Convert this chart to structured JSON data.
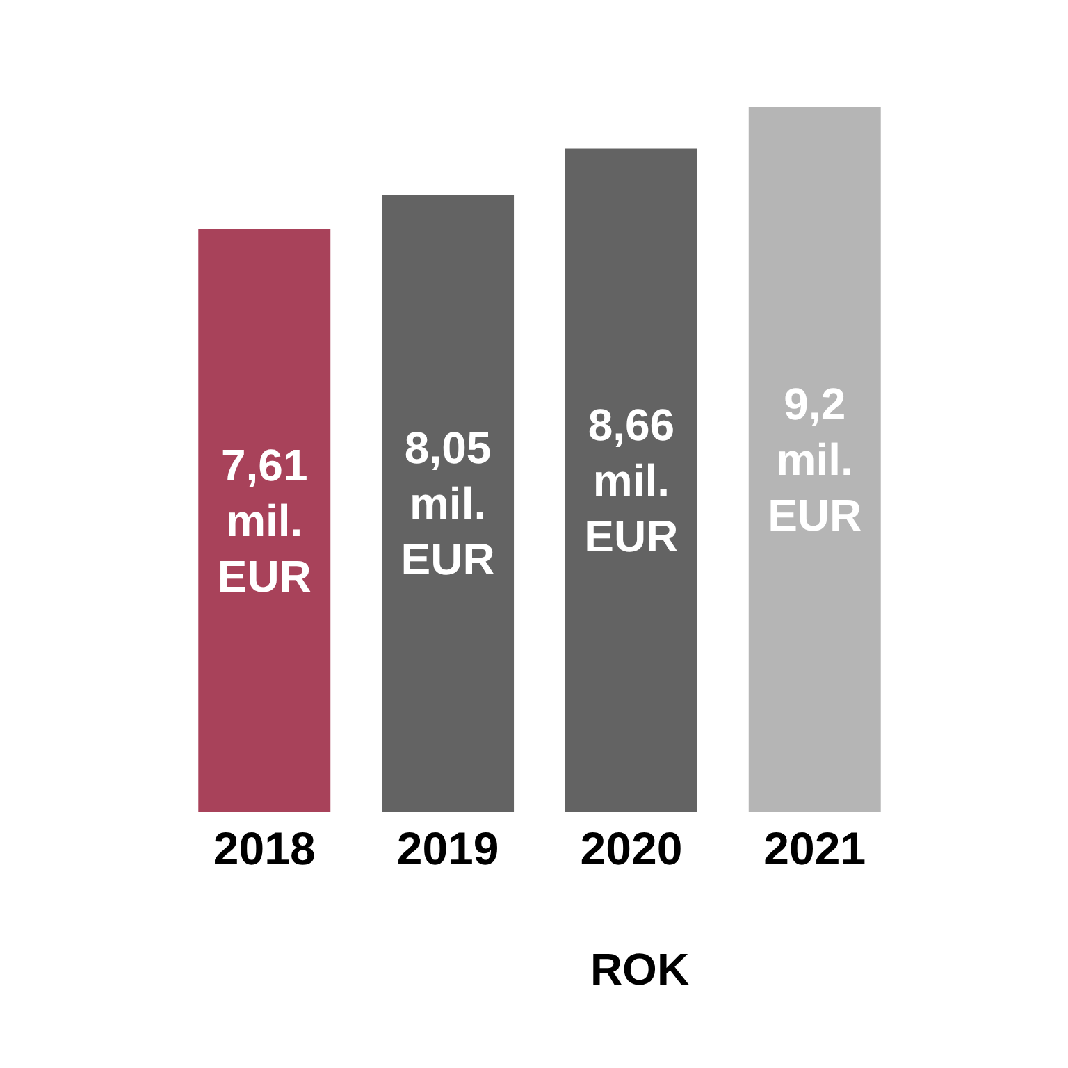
{
  "chart_data": {
    "type": "bar",
    "xlabel": "ROK",
    "categories": [
      "2018",
      "2019",
      "2020",
      "2021"
    ],
    "values": [
      7.61,
      8.05,
      8.66,
      9.2
    ],
    "colors": [
      "#a8425a",
      "#636363",
      "#636363",
      "#b5b5b5"
    ],
    "value_labels": [
      "7,61 mil. EUR",
      "8,05 mil. EUR",
      "8,66 mil. EUR",
      "9,2 mil. EUR"
    ],
    "tick_labels": "x"
  }
}
